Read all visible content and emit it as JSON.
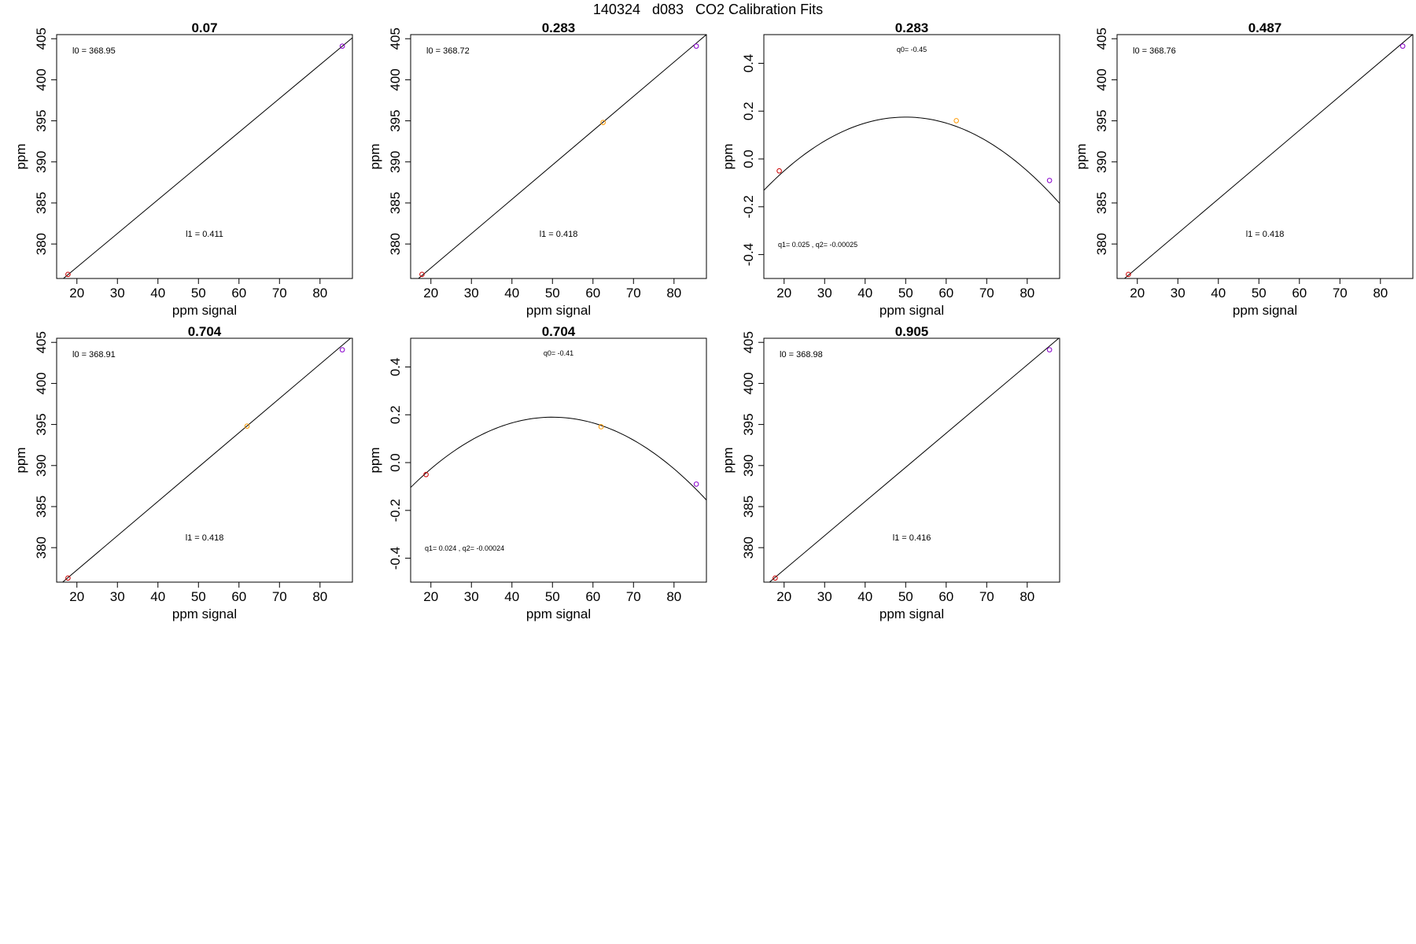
{
  "page": {
    "title": "140324   d083   CO2 Calibration Fits"
  },
  "chart_data": [
    {
      "type": "line",
      "fit": "linear",
      "title": "0.07",
      "xlabel": "ppm signal",
      "ylabel": "ppm",
      "xlim": [
        15,
        88
      ],
      "ylim": [
        375.8,
        405.5
      ],
      "xticks": [
        20,
        30,
        40,
        50,
        60,
        70,
        80
      ],
      "yticks": [
        380,
        385,
        390,
        395,
        400,
        405
      ],
      "coef": {
        "l0": 368.95,
        "l1": 0.411
      },
      "annotations": {
        "l0": "l0 =  368.95",
        "l1": "l1 =  0.411"
      },
      "points": [
        {
          "x": 17.8,
          "y": 376.3,
          "color": "#cc0000"
        },
        {
          "x": 85.5,
          "y": 404.1,
          "color": "#8800cc"
        }
      ]
    },
    {
      "type": "line",
      "fit": "linear",
      "title": "0.283",
      "xlabel": "ppm signal",
      "ylabel": "ppm",
      "xlim": [
        15,
        88
      ],
      "ylim": [
        375.8,
        405.5
      ],
      "xticks": [
        20,
        30,
        40,
        50,
        60,
        70,
        80
      ],
      "yticks": [
        380,
        385,
        390,
        395,
        400,
        405
      ],
      "coef": {
        "l0": 368.72,
        "l1": 0.418
      },
      "annotations": {
        "l0": "l0 =  368.72",
        "l1": "l1 =  0.418"
      },
      "points": [
        {
          "x": 17.8,
          "y": 376.3,
          "color": "#cc0000"
        },
        {
          "x": 62.5,
          "y": 394.8,
          "color": "#ff9900"
        },
        {
          "x": 85.5,
          "y": 404.1,
          "color": "#8800cc"
        }
      ]
    },
    {
      "type": "line",
      "fit": "quadratic",
      "title": "0.283",
      "xlabel": "ppm signal",
      "ylabel": "ppm",
      "xlim": [
        15,
        88
      ],
      "ylim": [
        -0.5,
        0.52
      ],
      "xticks": [
        20,
        30,
        40,
        50,
        60,
        70,
        80
      ],
      "yticks": [
        -0.4,
        -0.2,
        0.0,
        0.2,
        0.4
      ],
      "ytick_labels": [
        "-0.4",
        "-0.2",
        "0.0",
        "0.2",
        "0.4"
      ],
      "coef": {
        "q0": -0.45,
        "q1": 0.025,
        "q2": -0.00025
      },
      "annotations": {
        "q0": "q0= -0.45",
        "q12": "q1= 0.025 , q2= -0.00025"
      },
      "points": [
        {
          "x": 18.8,
          "y": -0.05,
          "color": "#cc0000"
        },
        {
          "x": 62.5,
          "y": 0.16,
          "color": "#ff9900"
        },
        {
          "x": 85.5,
          "y": -0.09,
          "color": "#8800cc"
        }
      ]
    },
    {
      "type": "line",
      "fit": "linear",
      "title": "0.487",
      "xlabel": "ppm signal",
      "ylabel": "ppm",
      "xlim": [
        15,
        88
      ],
      "ylim": [
        375.8,
        405.5
      ],
      "xticks": [
        20,
        30,
        40,
        50,
        60,
        70,
        80
      ],
      "yticks": [
        380,
        385,
        390,
        395,
        400,
        405
      ],
      "coef": {
        "l0": 368.76,
        "l1": 0.418
      },
      "annotations": {
        "l0": "l0 =  368.76",
        "l1": "l1 =  0.418"
      },
      "points": [
        {
          "x": 17.8,
          "y": 376.3,
          "color": "#cc0000"
        },
        {
          "x": 85.5,
          "y": 404.1,
          "color": "#8800cc"
        }
      ]
    },
    {
      "type": "line",
      "fit": "linear",
      "title": "0.704",
      "xlabel": "ppm signal",
      "ylabel": "ppm",
      "xlim": [
        15,
        88
      ],
      "ylim": [
        375.8,
        405.5
      ],
      "xticks": [
        20,
        30,
        40,
        50,
        60,
        70,
        80
      ],
      "yticks": [
        380,
        385,
        390,
        395,
        400,
        405
      ],
      "coef": {
        "l0": 368.91,
        "l1": 0.418
      },
      "annotations": {
        "l0": "l0 =  368.91",
        "l1": "l1 =  0.418"
      },
      "points": [
        {
          "x": 17.8,
          "y": 376.3,
          "color": "#cc0000"
        },
        {
          "x": 62.0,
          "y": 394.8,
          "color": "#ff9900"
        },
        {
          "x": 85.5,
          "y": 404.1,
          "color": "#8800cc"
        }
      ]
    },
    {
      "type": "line",
      "fit": "quadratic",
      "title": "0.704",
      "xlabel": "ppm signal",
      "ylabel": "ppm",
      "xlim": [
        15,
        88
      ],
      "ylim": [
        -0.5,
        0.52
      ],
      "xticks": [
        20,
        30,
        40,
        50,
        60,
        70,
        80
      ],
      "yticks": [
        -0.4,
        -0.2,
        0.0,
        0.2,
        0.4
      ],
      "ytick_labels": [
        "-0.4",
        "-0.2",
        "0.0",
        "0.2",
        "0.4"
      ],
      "coef": {
        "q0": -0.41,
        "q1": 0.024,
        "q2": -0.00024
      },
      "annotations": {
        "q0": "q0= -0.41",
        "q12": "q1= 0.024 , q2= -0.00024"
      },
      "points": [
        {
          "x": 18.8,
          "y": -0.05,
          "color": "#cc0000"
        },
        {
          "x": 62.0,
          "y": 0.15,
          "color": "#ff9900"
        },
        {
          "x": 85.5,
          "y": -0.09,
          "color": "#8800cc"
        }
      ]
    },
    {
      "type": "line",
      "fit": "linear",
      "title": "0.905",
      "xlabel": "ppm signal",
      "ylabel": "ppm",
      "xlim": [
        15,
        88
      ],
      "ylim": [
        375.8,
        405.5
      ],
      "xticks": [
        20,
        30,
        40,
        50,
        60,
        70,
        80
      ],
      "yticks": [
        380,
        385,
        390,
        395,
        400,
        405
      ],
      "coef": {
        "l0": 368.98,
        "l1": 0.416
      },
      "annotations": {
        "l0": "l0 =  368.98",
        "l1": "l1 =  0.416"
      },
      "points": [
        {
          "x": 17.8,
          "y": 376.3,
          "color": "#cc0000"
        },
        {
          "x": 85.5,
          "y": 404.1,
          "color": "#8800cc"
        }
      ]
    }
  ]
}
